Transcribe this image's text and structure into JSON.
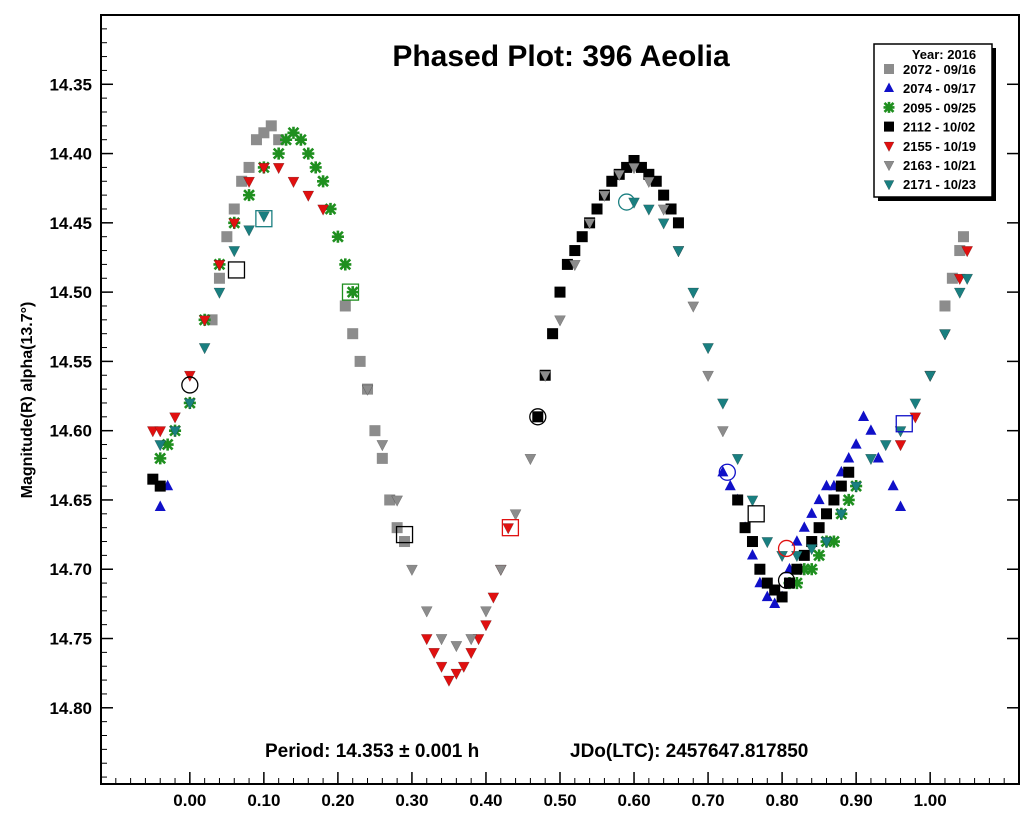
{
  "chart_data": {
    "type": "scatter",
    "title": "Phased Plot: 396 Aeolia",
    "ylabel": "Magnitude(R) alpha(13.7°)",
    "xlabel": "",
    "footer_period": "Period: 14.353 ± 0.001 h",
    "footer_epoch": "JDo(LTC): 2457647.817850",
    "xlim": [
      -0.12,
      1.12
    ],
    "ylim": [
      14.855,
      14.3
    ],
    "y_inverted": true,
    "grid": false,
    "x_ticks": [
      "0.00",
      "0.10",
      "0.20",
      "0.30",
      "0.40",
      "0.50",
      "0.60",
      "0.70",
      "0.80",
      "0.90",
      "1.00"
    ],
    "x_tick_values": [
      0,
      0.1,
      0.2,
      0.3,
      0.4,
      0.5,
      0.6,
      0.7,
      0.8,
      0.9,
      1.0
    ],
    "y_ticks": [
      "14.35",
      "14.40",
      "14.45",
      "14.50",
      "14.55",
      "14.60",
      "14.65",
      "14.70",
      "14.75",
      "14.80"
    ],
    "y_tick_values": [
      14.35,
      14.4,
      14.45,
      14.5,
      14.55,
      14.6,
      14.65,
      14.7,
      14.75,
      14.8
    ],
    "legend_title": "Year: 2016",
    "legend_position": "top-right",
    "series": [
      {
        "name": "2072 - 09/16",
        "marker": "square",
        "color": "#8c8c8c",
        "x": [
          0.03,
          0.04,
          0.05,
          0.06,
          0.07,
          0.08,
          0.09,
          0.1,
          0.11,
          0.12,
          1.02,
          1.03,
          1.04,
          1.045,
          0.21,
          0.22,
          0.23,
          0.24,
          0.25,
          0.26,
          0.27,
          0.28,
          0.29
        ],
        "y": [
          14.52,
          14.49,
          14.46,
          14.44,
          14.42,
          14.41,
          14.39,
          14.385,
          14.38,
          14.39,
          14.51,
          14.49,
          14.47,
          14.46,
          14.51,
          14.53,
          14.55,
          14.57,
          14.6,
          14.62,
          14.65,
          14.67,
          14.68
        ]
      },
      {
        "name": "2074 - 09/17",
        "marker": "triangle-up",
        "color": "#1010c8",
        "x": [
          -0.04,
          -0.03,
          0.72,
          0.73,
          0.74,
          0.75,
          0.76,
          0.77,
          0.78,
          0.79,
          0.8,
          0.81,
          0.82,
          0.83,
          0.84,
          0.85,
          0.86,
          0.87,
          0.88,
          0.89,
          0.9,
          0.91,
          0.92,
          0.93,
          0.95,
          0.96
        ],
        "y": [
          14.655,
          14.64,
          14.63,
          14.64,
          14.65,
          14.67,
          14.69,
          14.71,
          14.72,
          14.725,
          14.72,
          14.7,
          14.68,
          14.67,
          14.66,
          14.65,
          14.64,
          14.64,
          14.63,
          14.62,
          14.61,
          14.59,
          14.6,
          14.62,
          14.64,
          14.655
        ]
      },
      {
        "name": "2095 - 09/25",
        "marker": "asterisk",
        "color": "#1f8f1f",
        "x": [
          -0.04,
          -0.03,
          -0.02,
          0.0,
          0.02,
          0.04,
          0.06,
          0.08,
          0.1,
          0.12,
          0.13,
          0.14,
          0.15,
          0.16,
          0.17,
          0.18,
          0.19,
          0.2,
          0.21,
          0.22,
          0.81,
          0.82,
          0.83,
          0.84,
          0.85,
          0.86,
          0.87,
          0.88,
          0.89,
          0.9
        ],
        "y": [
          14.62,
          14.61,
          14.6,
          14.58,
          14.52,
          14.48,
          14.45,
          14.43,
          14.41,
          14.4,
          14.39,
          14.385,
          14.39,
          14.4,
          14.41,
          14.42,
          14.44,
          14.46,
          14.48,
          14.5,
          14.71,
          14.71,
          14.7,
          14.7,
          14.69,
          14.68,
          14.68,
          14.66,
          14.65,
          14.64
        ]
      },
      {
        "name": "2112 - 10/02",
        "marker": "square",
        "color": "#000000",
        "x": [
          -0.05,
          -0.04,
          0.47,
          0.48,
          0.49,
          0.5,
          0.51,
          0.52,
          0.53,
          0.54,
          0.55,
          0.56,
          0.57,
          0.58,
          0.59,
          0.6,
          0.61,
          0.62,
          0.63,
          0.64,
          0.65,
          0.66,
          0.74,
          0.75,
          0.76,
          0.77,
          0.78,
          0.79,
          0.8,
          0.81,
          0.82,
          0.83,
          0.84,
          0.85,
          0.86,
          0.87,
          0.88,
          0.89
        ],
        "y": [
          14.635,
          14.64,
          14.59,
          14.56,
          14.53,
          14.5,
          14.48,
          14.47,
          14.46,
          14.45,
          14.44,
          14.43,
          14.42,
          14.415,
          14.41,
          14.405,
          14.41,
          14.415,
          14.42,
          14.43,
          14.44,
          14.45,
          14.65,
          14.67,
          14.68,
          14.7,
          14.71,
          14.715,
          14.72,
          14.71,
          14.7,
          14.69,
          14.68,
          14.67,
          14.66,
          14.65,
          14.64,
          14.63
        ]
      },
      {
        "name": "2155 - 10/19",
        "marker": "triangle-down",
        "color": "#e01010",
        "x": [
          -0.05,
          -0.04,
          -0.02,
          0.0,
          0.02,
          0.04,
          0.06,
          0.08,
          0.1,
          0.12,
          0.14,
          0.16,
          0.18,
          0.32,
          0.33,
          0.34,
          0.35,
          0.36,
          0.37,
          0.38,
          0.39,
          0.4,
          0.41,
          0.42,
          0.43,
          0.96,
          0.98,
          1.0,
          1.02,
          1.04,
          1.05
        ],
        "y": [
          14.6,
          14.6,
          14.59,
          14.56,
          14.52,
          14.48,
          14.45,
          14.42,
          14.41,
          14.41,
          14.42,
          14.43,
          14.44,
          14.75,
          14.76,
          14.77,
          14.78,
          14.775,
          14.77,
          14.76,
          14.75,
          14.74,
          14.72,
          14.7,
          14.67,
          14.61,
          14.59,
          14.56,
          14.53,
          14.49,
          14.47
        ]
      },
      {
        "name": "2163 - 10/21",
        "marker": "triangle-down",
        "color": "#8c8c8c",
        "x": [
          0.24,
          0.26,
          0.28,
          0.3,
          0.32,
          0.34,
          0.36,
          0.38,
          0.4,
          0.42,
          0.44,
          0.46,
          0.48,
          0.5,
          0.52,
          0.54,
          0.56,
          0.58,
          0.6,
          0.62,
          0.64,
          0.66,
          0.68,
          0.7,
          0.72
        ],
        "y": [
          14.57,
          14.61,
          14.65,
          14.7,
          14.73,
          14.75,
          14.755,
          14.75,
          14.73,
          14.7,
          14.66,
          14.62,
          14.56,
          14.52,
          14.48,
          14.45,
          14.43,
          14.415,
          14.41,
          14.42,
          14.44,
          14.47,
          14.51,
          14.56,
          14.6
        ]
      },
      {
        "name": "2171 - 10/23",
        "marker": "triangle-down",
        "color": "#1a7f80",
        "x": [
          -0.04,
          -0.02,
          0.0,
          0.02,
          0.04,
          0.06,
          0.08,
          0.1,
          0.6,
          0.62,
          0.64,
          0.66,
          0.68,
          0.7,
          0.72,
          0.74,
          0.76,
          0.78,
          0.8,
          0.82,
          0.84,
          0.86,
          0.88,
          0.9,
          0.92,
          0.94,
          0.96,
          0.98,
          1.0,
          1.02,
          1.04,
          1.05
        ],
        "y": [
          14.61,
          14.6,
          14.58,
          14.54,
          14.5,
          14.47,
          14.455,
          14.445,
          14.435,
          14.44,
          14.45,
          14.47,
          14.5,
          14.54,
          14.58,
          14.62,
          14.65,
          14.68,
          14.69,
          14.69,
          14.685,
          14.68,
          14.66,
          14.64,
          14.62,
          14.61,
          14.6,
          14.58,
          14.56,
          14.53,
          14.5,
          14.49
        ]
      }
    ],
    "open_markers": [
      {
        "x": 0.063,
        "y": 14.484,
        "shape": "square",
        "color": "#000000"
      },
      {
        "x": 0.1,
        "y": 14.447,
        "shape": "square",
        "color": "#1a7f80"
      },
      {
        "x": 0.217,
        "y": 14.5,
        "shape": "square",
        "color": "#1f8f1f"
      },
      {
        "x": 0.29,
        "y": 14.675,
        "shape": "square",
        "color": "#000000"
      },
      {
        "x": 0.433,
        "y": 14.67,
        "shape": "square",
        "color": "#e01010"
      },
      {
        "x": 0.47,
        "y": 14.59,
        "shape": "circle",
        "color": "#000000"
      },
      {
        "x": 0.59,
        "y": 14.435,
        "shape": "circle",
        "color": "#1a7f80"
      },
      {
        "x": 0.726,
        "y": 14.63,
        "shape": "circle",
        "color": "#1010c8"
      },
      {
        "x": 0.765,
        "y": 14.66,
        "shape": "square",
        "color": "#000000"
      },
      {
        "x": 0.806,
        "y": 14.685,
        "shape": "circle",
        "color": "#e01010"
      },
      {
        "x": 0.806,
        "y": 14.708,
        "shape": "circle",
        "color": "#000000"
      },
      {
        "x": 0.965,
        "y": 14.595,
        "shape": "square",
        "color": "#1010c8"
      },
      {
        "x": 0.0,
        "y": 14.567,
        "shape": "circle",
        "color": "#000000"
      }
    ]
  }
}
